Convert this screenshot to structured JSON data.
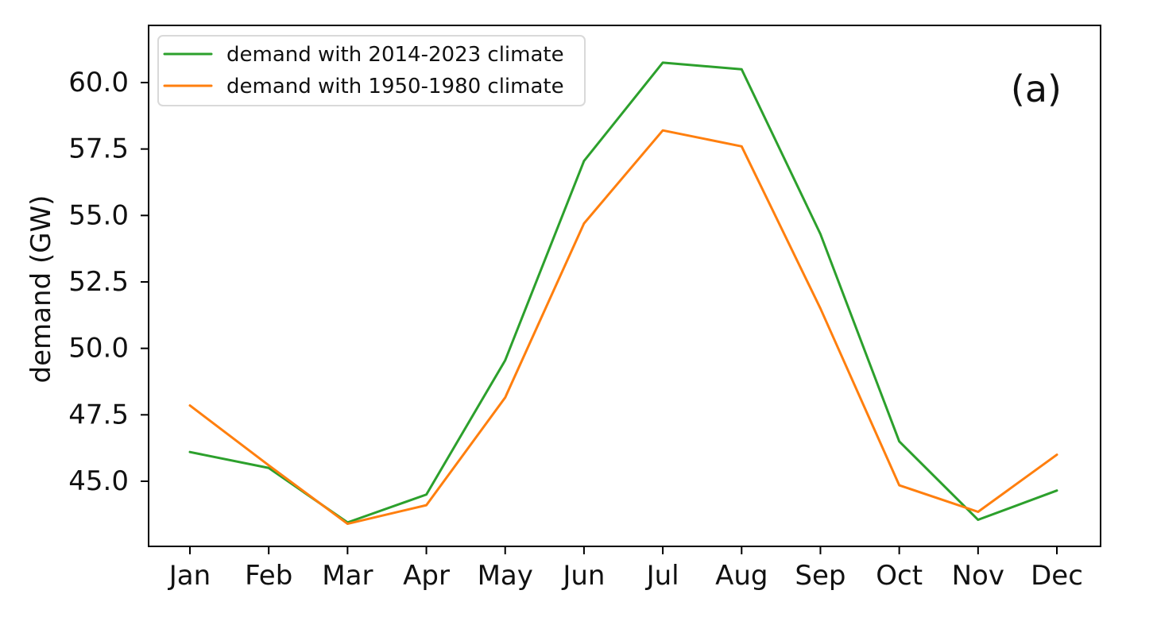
{
  "chart_data": {
    "type": "line",
    "categories": [
      "Jan",
      "Feb",
      "Mar",
      "Apr",
      "May",
      "Jun",
      "Jul",
      "Aug",
      "Sep",
      "Oct",
      "Nov",
      "Dec"
    ],
    "series": [
      {
        "name": "demand with 2014-2023 climate",
        "color": "#2ca02c",
        "values": [
          46.1,
          45.5,
          43.45,
          44.5,
          49.55,
          57.05,
          60.75,
          60.5,
          54.3,
          46.5,
          43.55,
          44.65
        ]
      },
      {
        "name": "demand with 1950-1980 climate",
        "color": "#ff7f0e",
        "values": [
          47.85,
          45.6,
          43.4,
          44.1,
          48.15,
          54.7,
          58.2,
          57.6,
          51.5,
          44.85,
          43.85,
          46.0
        ]
      }
    ],
    "ylabel": "demand (GW)",
    "xlabel": "",
    "yticks": [
      "45.0",
      "47.5",
      "50.0",
      "52.5",
      "55.0",
      "57.5",
      "60.0"
    ],
    "ylim": [
      42.55,
      62.15
    ],
    "annotation": "(a)",
    "legend_position": "top-left",
    "grid": false
  }
}
